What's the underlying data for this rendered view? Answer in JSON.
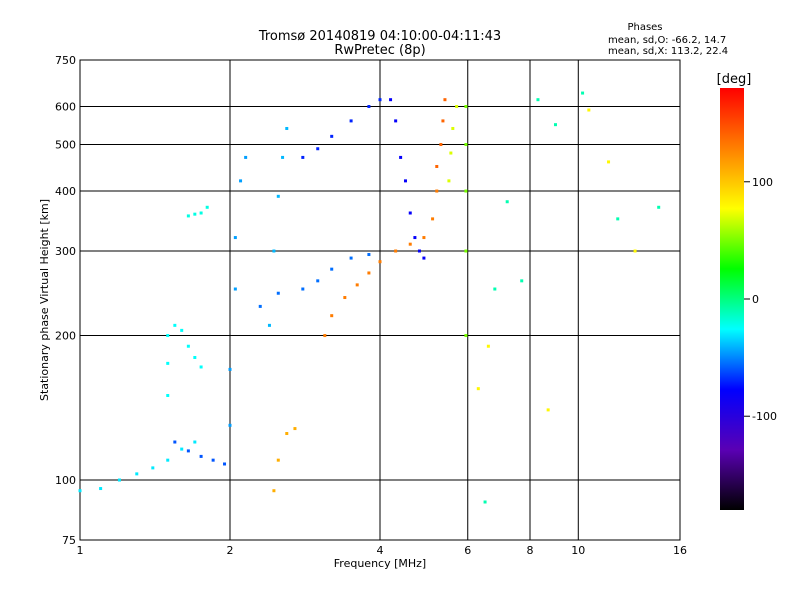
{
  "chart_data": {
    "type": "scatter",
    "title": "Tromsø 20140819 04:10:00-04:11:43",
    "subtitle": "RwPretec (8p)",
    "xlabel": "Frequency [MHz]",
    "ylabel": "Stationary phase Virtual Height [km]",
    "x_scale": "log",
    "y_scale": "log",
    "xlim": [
      1,
      16
    ],
    "ylim": [
      75,
      750
    ],
    "x_ticks": [
      1,
      2,
      4,
      6,
      8,
      10,
      16
    ],
    "y_ticks": [
      75,
      100,
      200,
      300,
      400,
      500,
      600,
      750
    ],
    "x_tick_labels": [
      "1",
      "2",
      "4",
      "6",
      "8",
      "10",
      "16"
    ],
    "y_tick_labels": [
      "75",
      "100",
      "200",
      "300",
      "400",
      "500",
      "600",
      "750"
    ],
    "grid": true,
    "phases_box": {
      "title": "Phases",
      "line_o": "mean, sd,O: -66.2, 14.7",
      "line_x": "mean, sd,X: 113.2, 22.4"
    },
    "colorbar": {
      "label": "[deg]",
      "range": [
        -180,
        180
      ],
      "ticks": [
        100,
        0,
        -100
      ],
      "tick_labels": [
        "100",
        "0",
        "-100"
      ],
      "colors": [
        "#000000",
        "#5a00b4",
        "#0000ff",
        "#00ffff",
        "#00ff00",
        "#ffff00",
        "#ff8000",
        "#ff0000"
      ]
    },
    "traces": [
      {
        "name_hidden": true,
        "phase": -30,
        "points": [
          [
            1.0,
            95
          ],
          [
            1.1,
            96
          ],
          [
            1.2,
            100
          ],
          [
            1.3,
            103
          ],
          [
            1.4,
            106
          ],
          [
            1.5,
            110
          ],
          [
            1.6,
            116
          ],
          [
            1.7,
            120
          ]
        ]
      },
      {
        "phase": -25,
        "points": [
          [
            1.5,
            150
          ],
          [
            1.5,
            175
          ],
          [
            1.5,
            200
          ],
          [
            1.55,
            210
          ],
          [
            1.6,
            205
          ],
          [
            1.65,
            190
          ],
          [
            1.7,
            180
          ],
          [
            1.75,
            172
          ]
        ]
      },
      {
        "phase": -20,
        "points": [
          [
            1.65,
            355
          ],
          [
            1.7,
            358
          ],
          [
            1.75,
            360
          ],
          [
            1.8,
            370
          ]
        ]
      },
      {
        "phase": -60,
        "points": [
          [
            1.55,
            120
          ],
          [
            1.65,
            115
          ],
          [
            1.75,
            112
          ],
          [
            1.85,
            110
          ],
          [
            1.95,
            108
          ]
        ]
      },
      {
        "phase": -45,
        "points": [
          [
            2.0,
            130
          ],
          [
            2.0,
            170
          ],
          [
            2.05,
            250
          ],
          [
            2.05,
            320
          ],
          [
            2.1,
            420
          ],
          [
            2.15,
            470
          ]
        ]
      },
      {
        "phase": -40,
        "points": [
          [
            2.4,
            210
          ],
          [
            2.45,
            300
          ],
          [
            2.5,
            390
          ],
          [
            2.55,
            470
          ],
          [
            2.6,
            540
          ]
        ]
      },
      {
        "phase": -55,
        "points": [
          [
            2.3,
            230
          ],
          [
            2.5,
            245
          ],
          [
            2.8,
            250
          ],
          [
            3.0,
            260
          ],
          [
            3.2,
            275
          ],
          [
            3.5,
            290
          ],
          [
            3.8,
            295
          ]
        ]
      },
      {
        "phase": -70,
        "points": [
          [
            2.8,
            470
          ],
          [
            3.0,
            490
          ],
          [
            3.2,
            520
          ],
          [
            3.5,
            560
          ],
          [
            3.8,
            600
          ],
          [
            4.0,
            620
          ]
        ]
      },
      {
        "phase": -80,
        "points": [
          [
            4.2,
            620
          ],
          [
            4.3,
            560
          ],
          [
            4.4,
            470
          ],
          [
            4.5,
            420
          ],
          [
            4.6,
            360
          ],
          [
            4.7,
            320
          ],
          [
            4.8,
            300
          ],
          [
            4.9,
            290
          ]
        ]
      },
      {
        "phase": 130,
        "points": [
          [
            3.1,
            200
          ],
          [
            3.2,
            220
          ],
          [
            3.4,
            240
          ],
          [
            3.6,
            255
          ],
          [
            3.8,
            270
          ],
          [
            4.0,
            285
          ],
          [
            4.3,
            300
          ],
          [
            4.6,
            310
          ],
          [
            4.9,
            320
          ],
          [
            5.1,
            350
          ],
          [
            5.2,
            400
          ]
        ]
      },
      {
        "phase": 140,
        "points": [
          [
            5.2,
            450
          ],
          [
            5.3,
            500
          ],
          [
            5.35,
            560
          ],
          [
            5.4,
            620
          ]
        ]
      },
      {
        "phase": 70,
        "points": [
          [
            5.5,
            420
          ],
          [
            5.55,
            480
          ],
          [
            5.6,
            540
          ],
          [
            5.7,
            600
          ]
        ]
      },
      {
        "phase": 110,
        "points": [
          [
            2.45,
            95
          ],
          [
            2.5,
            110
          ],
          [
            2.6,
            125
          ],
          [
            2.7,
            128
          ]
        ]
      },
      {
        "phase": 50,
        "points": [
          [
            5.95,
            200
          ],
          [
            5.95,
            300
          ],
          [
            5.95,
            400
          ],
          [
            5.95,
            500
          ],
          [
            5.95,
            600
          ]
        ]
      },
      {
        "phase": -10,
        "points": [
          [
            6.5,
            90
          ],
          [
            6.8,
            250
          ],
          [
            7.2,
            380
          ],
          [
            7.7,
            260
          ],
          [
            8.3,
            620
          ],
          [
            9.0,
            550
          ],
          [
            10.2,
            640
          ],
          [
            12.0,
            350
          ],
          [
            14.5,
            370
          ]
        ]
      },
      {
        "phase": 80,
        "points": [
          [
            6.3,
            155
          ],
          [
            6.6,
            190
          ],
          [
            8.7,
            140
          ],
          [
            10.5,
            590
          ],
          [
            11.5,
            460
          ],
          [
            13.0,
            300
          ]
        ]
      }
    ]
  }
}
